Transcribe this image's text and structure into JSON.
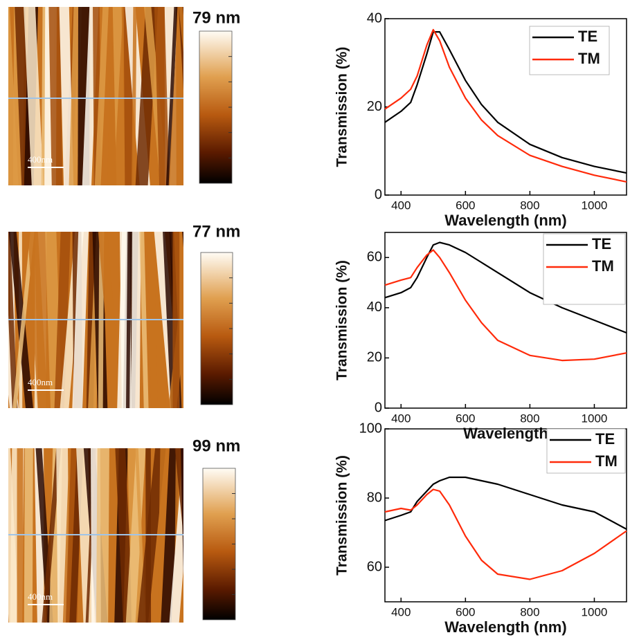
{
  "afm_panels": [
    {
      "height_label": "79 nm",
      "scale_bar": "400nm"
    },
    {
      "height_label": "77 nm",
      "scale_bar": "400nm"
    },
    {
      "height_label": "99 nm",
      "scale_bar": "400nm"
    }
  ],
  "chart_data": [
    {
      "type": "line",
      "xlabel": "Wavelength (nm)",
      "ylabel": "Transmission (%)",
      "x": [
        350,
        400,
        430,
        450,
        480,
        500,
        520,
        550,
        600,
        650,
        700,
        800,
        900,
        1000,
        1100
      ],
      "series": [
        {
          "name": "TE",
          "color": "#000000",
          "values": [
            16.5,
            19,
            21,
            25,
            32,
            37,
            37,
            33,
            26,
            20.5,
            16.5,
            11.5,
            8.5,
            6.5,
            5
          ]
        },
        {
          "name": "TM",
          "color": "#ff2a0a",
          "values": [
            19.5,
            22,
            24,
            27,
            34,
            37.5,
            35,
            29,
            22,
            17,
            13.5,
            9,
            6.5,
            4.5,
            3
          ]
        }
      ],
      "xlim": [
        350,
        1100
      ],
      "xticks": [
        400,
        600,
        800,
        1000
      ],
      "ylim": [
        0,
        40
      ],
      "yticks": [
        0,
        20,
        40
      ],
      "legend": "upper right"
    },
    {
      "type": "line",
      "xlabel": "Wavelength",
      "ylabel": "Transmission (%)",
      "x": [
        350,
        400,
        430,
        450,
        480,
        500,
        520,
        550,
        600,
        650,
        700,
        800,
        900,
        1000,
        1100
      ],
      "series": [
        {
          "name": "TE",
          "color": "#000000",
          "values": [
            44,
            46,
            48,
            52,
            60,
            65,
            66,
            65,
            62,
            58,
            54,
            46,
            40,
            35,
            30
          ]
        },
        {
          "name": "TM",
          "color": "#ff2a0a",
          "values": [
            49,
            51,
            52,
            56,
            61,
            63,
            60,
            54,
            43,
            34,
            27,
            21,
            19,
            19.5,
            22
          ]
        }
      ],
      "xlim": [
        350,
        1100
      ],
      "xticks": [
        400,
        600,
        800,
        1000
      ],
      "ylim": [
        0,
        70
      ],
      "yticks": [
        0,
        20,
        40,
        60
      ],
      "legend": "upper right"
    },
    {
      "type": "line",
      "xlabel": "Wavelength (nm)",
      "ylabel": "Transmission (%)",
      "x": [
        350,
        400,
        430,
        450,
        480,
        500,
        520,
        550,
        600,
        650,
        700,
        800,
        900,
        1000,
        1100
      ],
      "series": [
        {
          "name": "TE",
          "color": "#000000",
          "values": [
            73.5,
            75,
            76,
            79,
            82,
            84,
            85,
            86,
            86,
            85,
            84,
            81,
            78,
            76,
            71
          ]
        },
        {
          "name": "TM",
          "color": "#ff2a0a",
          "values": [
            76,
            77,
            76.5,
            78,
            81,
            82.5,
            82,
            78,
            69,
            62,
            58,
            56.5,
            59,
            64,
            70.5
          ]
        }
      ],
      "xlim": [
        350,
        1100
      ],
      "xticks": [
        400,
        600,
        800,
        1000
      ],
      "ylim": [
        50,
        100
      ],
      "yticks": [
        60,
        80,
        100
      ],
      "legend": "upper right"
    }
  ]
}
